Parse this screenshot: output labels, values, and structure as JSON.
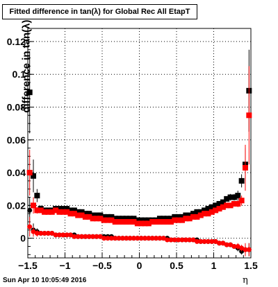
{
  "chart_data": {
    "type": "scatter",
    "title": "Fitted difference in tan(λ) for Global Rec All EtapT",
    "xlabel": "η",
    "ylabel": "difference in tan(λ)",
    "xlim": [
      -1.5,
      1.5
    ],
    "ylim": [
      -0.012,
      0.128
    ],
    "xticks": [
      "−1.5",
      "−1",
      "−0.5",
      "0",
      "0.5",
      "1",
      "1.5"
    ],
    "yticks": [
      "0",
      "0.02",
      "0.04",
      "0.06",
      "0.08",
      "0.1",
      "0.12"
    ],
    "grid": true,
    "series": [
      {
        "color": "#000000",
        "x": [
          -1.475,
          -1.425,
          -1.375,
          -1.325,
          -1.275,
          -1.225,
          -1.175,
          -1.125,
          -1.075,
          -1.025,
          -0.975,
          -0.925,
          -0.875,
          -0.825,
          -0.775,
          -0.725,
          -0.675,
          -0.625,
          -0.575,
          -0.525,
          -0.475,
          -0.425,
          -0.375,
          -0.325,
          -0.275,
          -0.225,
          -0.175,
          -0.125,
          -0.075,
          -0.025,
          0.025,
          0.075,
          0.125,
          0.175,
          0.225,
          0.275,
          0.325,
          0.375,
          0.425,
          0.475,
          0.525,
          0.575,
          0.625,
          0.675,
          0.725,
          0.775,
          0.825,
          0.875,
          0.925,
          0.975,
          1.025,
          1.075,
          1.125,
          1.175,
          1.225,
          1.275,
          1.325,
          1.375,
          1.425,
          1.475
        ],
        "y": [
          0.089,
          0.038,
          0.026,
          0.018,
          0.017,
          0.017,
          0.017,
          0.018,
          0.018,
          0.018,
          0.018,
          0.017,
          0.017,
          0.016,
          0.016,
          0.015,
          0.015,
          0.014,
          0.014,
          0.014,
          0.013,
          0.013,
          0.013,
          0.012,
          0.012,
          0.012,
          0.012,
          0.012,
          0.012,
          0.011,
          0.011,
          0.011,
          0.011,
          0.011,
          0.011,
          0.012,
          0.012,
          0.012,
          0.012,
          0.013,
          0.013,
          0.013,
          0.014,
          0.014,
          0.015,
          0.016,
          0.016,
          0.017,
          0.018,
          0.019,
          0.02,
          0.021,
          0.022,
          0.024,
          0.025,
          0.025,
          0.026,
          0.035,
          0.045,
          0.09
        ],
        "err": [
          0.025,
          0.01,
          0.004,
          0.002,
          0.001,
          0.001,
          0.001,
          0.001,
          0.001,
          0.001,
          0.001,
          0.001,
          0.001,
          0.001,
          0.001,
          0.001,
          0.001,
          0.001,
          0.001,
          0.001,
          0.001,
          0.001,
          0.001,
          0.001,
          0.001,
          0.001,
          0.001,
          0.001,
          0.001,
          0.001,
          0.001,
          0.001,
          0.001,
          0.001,
          0.001,
          0.001,
          0.001,
          0.001,
          0.001,
          0.001,
          0.001,
          0.001,
          0.001,
          0.001,
          0.001,
          0.001,
          0.001,
          0.001,
          0.001,
          0.001,
          0.001,
          0.001,
          0.001,
          0.001,
          0.002,
          0.002,
          0.003,
          0.004,
          0.01,
          0.025
        ]
      },
      {
        "color": "#000000",
        "x": [
          -1.475,
          -1.425,
          -1.375,
          -1.325,
          -1.275,
          -1.225,
          -1.175,
          -1.125,
          -1.075,
          -1.025,
          -0.975,
          -0.925,
          -0.875,
          -0.825,
          -0.775,
          -0.725,
          -0.675,
          -0.625,
          -0.575,
          -0.525,
          -0.475,
          -0.425,
          -0.375,
          -0.325,
          -0.275,
          -0.225,
          -0.175,
          -0.125,
          -0.075,
          -0.025,
          0.025,
          0.075,
          0.125,
          0.175,
          0.225,
          0.275,
          0.325,
          0.375,
          0.425,
          0.475,
          0.525,
          0.575,
          0.625,
          0.675,
          0.725,
          0.775,
          0.825,
          0.875,
          0.925,
          0.975,
          1.025,
          1.075,
          1.125,
          1.175,
          1.225,
          1.275,
          1.325,
          1.375,
          1.425,
          1.475
        ],
        "y": [
          0.017,
          0.005,
          0.004,
          0.003,
          0.003,
          0.003,
          0.003,
          0.002,
          0.002,
          0.002,
          0.002,
          0.002,
          0.002,
          0.001,
          0.001,
          0.001,
          0.001,
          0.001,
          0.001,
          0.001,
          0.001,
          0.001,
          0.001,
          0.0,
          0.0,
          0.0,
          0.0,
          0.0,
          0.0,
          0.0,
          0.0,
          0.0,
          0.0,
          0.0,
          0.0,
          0.0,
          0.0,
          0.0,
          -0.001,
          -0.001,
          -0.001,
          -0.001,
          -0.001,
          -0.001,
          -0.001,
          -0.001,
          -0.002,
          -0.002,
          -0.002,
          -0.002,
          -0.002,
          -0.003,
          -0.003,
          -0.004,
          -0.004,
          -0.005,
          -0.006,
          -0.008,
          -0.007,
          -0.007
        ],
        "err": [
          0.008,
          0.004,
          0.002,
          0.001,
          0.001,
          0.001,
          0.001,
          0.001,
          0.001,
          0.001,
          0.001,
          0.001,
          0.001,
          0.001,
          0.001,
          0.001,
          0.001,
          0.001,
          0.001,
          0.001,
          0.001,
          0.001,
          0.001,
          0.001,
          0.001,
          0.001,
          0.001,
          0.001,
          0.001,
          0.001,
          0.001,
          0.001,
          0.001,
          0.001,
          0.001,
          0.001,
          0.001,
          0.001,
          0.001,
          0.001,
          0.001,
          0.001,
          0.001,
          0.001,
          0.001,
          0.001,
          0.001,
          0.001,
          0.001,
          0.001,
          0.001,
          0.001,
          0.001,
          0.001,
          0.001,
          0.001,
          0.002,
          0.002,
          0.003,
          0.004
        ]
      },
      {
        "color": "#ff0000",
        "x": [
          -1.475,
          -1.425,
          -1.375,
          -1.325,
          -1.275,
          -1.225,
          -1.175,
          -1.125,
          -1.075,
          -1.025,
          -0.975,
          -0.925,
          -0.875,
          -0.825,
          -0.775,
          -0.725,
          -0.675,
          -0.625,
          -0.575,
          -0.525,
          -0.475,
          -0.425,
          -0.375,
          -0.325,
          -0.275,
          -0.225,
          -0.175,
          -0.125,
          -0.075,
          -0.025,
          0.025,
          0.075,
          0.125,
          0.175,
          0.225,
          0.275,
          0.325,
          0.375,
          0.425,
          0.475,
          0.525,
          0.575,
          0.625,
          0.675,
          0.725,
          0.775,
          0.825,
          0.875,
          0.925,
          0.975,
          1.025,
          1.075,
          1.125,
          1.175,
          1.225,
          1.275,
          1.325,
          1.375,
          1.425,
          1.475
        ],
        "y": [
          0.04,
          0.02,
          0.017,
          0.017,
          0.016,
          0.016,
          0.016,
          0.017,
          0.016,
          0.016,
          0.016,
          0.015,
          0.015,
          0.014,
          0.014,
          0.013,
          0.013,
          0.012,
          0.012,
          0.012,
          0.011,
          0.011,
          0.011,
          0.01,
          0.01,
          0.01,
          0.01,
          0.01,
          0.01,
          0.009,
          0.009,
          0.009,
          0.009,
          0.01,
          0.01,
          0.01,
          0.01,
          0.01,
          0.01,
          0.011,
          0.011,
          0.011,
          0.012,
          0.012,
          0.013,
          0.013,
          0.014,
          0.015,
          0.015,
          0.016,
          0.017,
          0.018,
          0.019,
          0.02,
          0.02,
          0.021,
          0.021,
          0.023,
          0.043,
          0.075
        ],
        "err": [
          0.014,
          0.005,
          0.002,
          0.001,
          0.001,
          0.001,
          0.001,
          0.001,
          0.001,
          0.001,
          0.001,
          0.001,
          0.001,
          0.001,
          0.001,
          0.001,
          0.001,
          0.001,
          0.001,
          0.001,
          0.001,
          0.001,
          0.001,
          0.001,
          0.001,
          0.001,
          0.001,
          0.001,
          0.001,
          0.001,
          0.001,
          0.001,
          0.001,
          0.001,
          0.001,
          0.001,
          0.001,
          0.001,
          0.001,
          0.001,
          0.001,
          0.001,
          0.001,
          0.001,
          0.001,
          0.001,
          0.001,
          0.001,
          0.001,
          0.001,
          0.001,
          0.001,
          0.001,
          0.001,
          0.001,
          0.001,
          0.002,
          0.003,
          0.014,
          0.03
        ]
      },
      {
        "color": "#ff0000",
        "x": [
          -1.475,
          -1.425,
          -1.375,
          -1.325,
          -1.275,
          -1.225,
          -1.175,
          -1.125,
          -1.075,
          -1.025,
          -0.975,
          -0.925,
          -0.875,
          -0.825,
          -0.775,
          -0.725,
          -0.675,
          -0.625,
          -0.575,
          -0.525,
          -0.475,
          -0.425,
          -0.375,
          -0.325,
          -0.275,
          -0.225,
          -0.175,
          -0.125,
          -0.075,
          -0.025,
          0.025,
          0.075,
          0.125,
          0.175,
          0.225,
          0.275,
          0.325,
          0.375,
          0.425,
          0.475,
          0.525,
          0.575,
          0.625,
          0.675,
          0.725,
          0.775,
          0.825,
          0.875,
          0.925,
          0.975,
          1.025,
          1.075,
          1.125,
          1.175,
          1.225,
          1.275,
          1.325,
          1.375,
          1.425,
          1.475
        ],
        "y": [
          0.007,
          0.004,
          0.003,
          0.003,
          0.003,
          0.003,
          0.003,
          0.002,
          0.002,
          0.002,
          0.002,
          0.002,
          0.001,
          0.001,
          0.001,
          0.001,
          0.001,
          0.001,
          0.001,
          0.001,
          0.0,
          0.0,
          0.0,
          0.0,
          0.0,
          0.0,
          0.0,
          0.0,
          0.0,
          0.0,
          0.0,
          0.0,
          0.0,
          0.0,
          0.0,
          0.0,
          0.0,
          -0.001,
          -0.001,
          -0.001,
          -0.001,
          -0.001,
          -0.001,
          -0.001,
          -0.001,
          -0.002,
          -0.002,
          -0.002,
          -0.002,
          -0.002,
          -0.002,
          -0.003,
          -0.003,
          -0.004,
          -0.004,
          -0.005,
          -0.005,
          -0.006,
          -0.007,
          -0.007
        ],
        "err": [
          0.006,
          0.003,
          0.002,
          0.001,
          0.001,
          0.001,
          0.001,
          0.001,
          0.001,
          0.001,
          0.001,
          0.001,
          0.001,
          0.001,
          0.001,
          0.001,
          0.001,
          0.001,
          0.001,
          0.001,
          0.001,
          0.001,
          0.001,
          0.001,
          0.001,
          0.001,
          0.001,
          0.001,
          0.001,
          0.001,
          0.001,
          0.001,
          0.001,
          0.001,
          0.001,
          0.001,
          0.001,
          0.001,
          0.001,
          0.001,
          0.001,
          0.001,
          0.001,
          0.001,
          0.001,
          0.001,
          0.001,
          0.001,
          0.001,
          0.001,
          0.001,
          0.001,
          0.001,
          0.001,
          0.001,
          0.001,
          0.002,
          0.002,
          0.004,
          0.004
        ]
      }
    ]
  },
  "footer": {
    "timestamp": "Sun Apr 10 10:05:49 2016"
  }
}
